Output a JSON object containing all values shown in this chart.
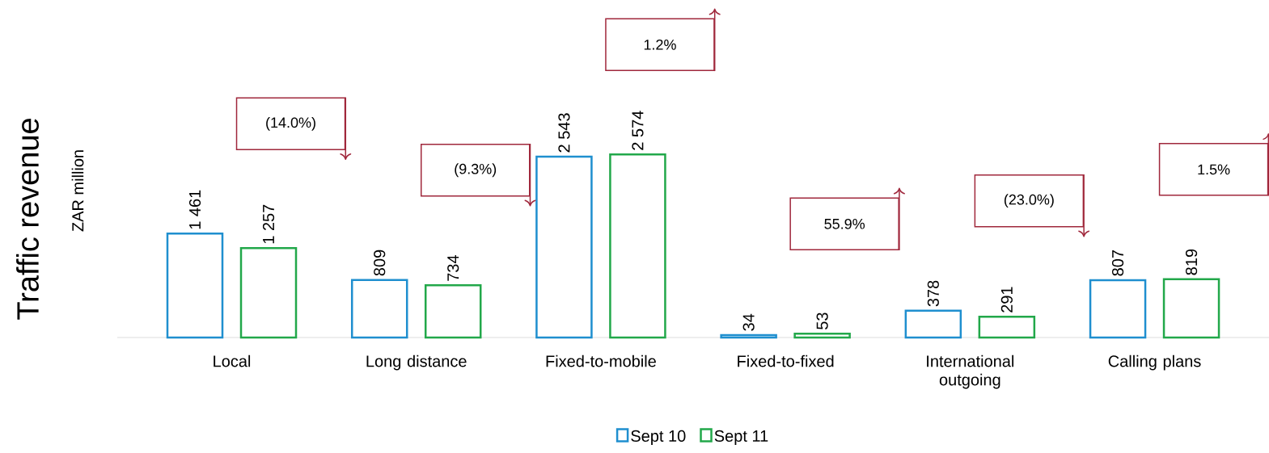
{
  "chart_data": {
    "type": "bar",
    "ylabel": "Traffic revenue",
    "subtitle": "ZAR million",
    "categories": [
      "Local",
      "Long distance",
      "Fixed-to-mobile",
      "Fixed-to-fixed",
      "International outgoing",
      "Calling plans"
    ],
    "series": [
      {
        "name": "Sept 10",
        "color": "#1f8fcf",
        "values": [
          1461,
          809,
          2543,
          34,
          378,
          807
        ],
        "value_labels": [
          "1 461",
          "809",
          "2 543",
          "34",
          "378",
          "807"
        ]
      },
      {
        "name": "Sept 11",
        "color": "#22a84a",
        "values": [
          1257,
          734,
          2574,
          53,
          291,
          819
        ],
        "value_labels": [
          "1 257",
          "734",
          "2 574",
          "53",
          "291",
          "819"
        ]
      }
    ],
    "annotations": [
      "(14.0%)",
      "(9.3%)",
      "1.2%",
      "55.9%",
      "(23.0%)",
      "1.5%"
    ],
    "legend": "bottom",
    "grid": false
  }
}
